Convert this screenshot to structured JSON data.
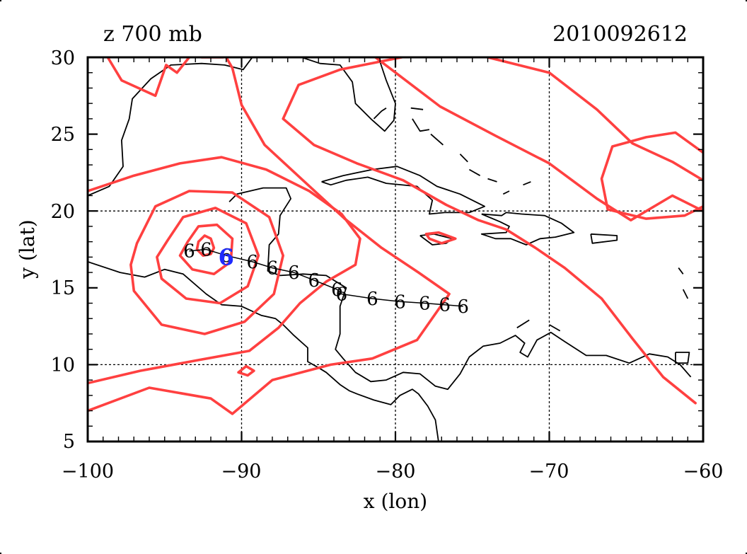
{
  "figure": {
    "title_left": "z 700 mb",
    "title_right": "2010092612",
    "xlabel": "x (lon)",
    "ylabel": "y (lat)",
    "x_ticks": [
      "−100",
      "−90",
      "−80",
      "−70",
      "−60"
    ],
    "y_ticks": [
      "30",
      "25",
      "20",
      "15",
      "10",
      "5"
    ]
  },
  "chart_data": {
    "type": "map",
    "title": "z 700 mb",
    "timestamp": "2010092612",
    "xlabel": "x (lon)",
    "ylabel": "y (lat)",
    "xlim": [
      -100,
      -60
    ],
    "ylim": [
      5,
      30
    ],
    "grid_lon": [
      -90,
      -80,
      -70
    ],
    "grid_lat": [
      10,
      20
    ],
    "colors": {
      "contour": "#ff4040",
      "coast": "#000000",
      "track": "#000000",
      "current_position": "#1f2bff",
      "grid": "#000000"
    },
    "storm_symbol": "6",
    "storm_track": [
      [
        -93.4,
        17.4
      ],
      [
        -92.3,
        17.5
      ],
      [
        -91.0,
        17.1
      ],
      [
        -89.3,
        16.7
      ],
      [
        -88.0,
        16.3
      ],
      [
        -86.6,
        16.0
      ],
      [
        -85.3,
        15.5
      ],
      [
        -83.8,
        14.9
      ],
      [
        -83.5,
        14.6
      ],
      [
        -81.5,
        14.3
      ],
      [
        -79.7,
        14.1
      ],
      [
        -78.1,
        14.0
      ],
      [
        -76.8,
        13.9
      ],
      [
        -75.6,
        13.8
      ]
    ],
    "current_position": [
      -91.0,
      17.0
    ],
    "contours": [
      [
        [
          -92.8,
          18.0
        ],
        [
          -92.4,
          18.4
        ],
        [
          -92.0,
          18.2
        ],
        [
          -91.8,
          17.6
        ],
        [
          -92.0,
          17.2
        ],
        [
          -92.5,
          17.1
        ],
        [
          -92.9,
          17.5
        ],
        [
          -92.8,
          18.0
        ]
      ],
      [
        [
          -93.5,
          18.0
        ],
        [
          -92.8,
          19.0
        ],
        [
          -91.6,
          19.1
        ],
        [
          -90.6,
          18.2
        ],
        [
          -90.7,
          16.7
        ],
        [
          -91.8,
          15.9
        ],
        [
          -93.2,
          16.2
        ],
        [
          -94.0,
          17.1
        ],
        [
          -93.5,
          18.0
        ]
      ],
      [
        [
          -94.8,
          18.1
        ],
        [
          -93.8,
          19.6
        ],
        [
          -91.7,
          20.2
        ],
        [
          -89.7,
          19.2
        ],
        [
          -88.9,
          17.1
        ],
        [
          -89.6,
          15.1
        ],
        [
          -91.4,
          14.0
        ],
        [
          -93.6,
          14.3
        ],
        [
          -95.2,
          15.6
        ],
        [
          -95.5,
          17.0
        ],
        [
          -94.8,
          18.1
        ]
      ],
      [
        [
          -96.8,
          17.9
        ],
        [
          -95.6,
          20.3
        ],
        [
          -93.4,
          21.3
        ],
        [
          -90.6,
          21.2
        ],
        [
          -88.2,
          19.6
        ],
        [
          -87.3,
          17.1
        ],
        [
          -87.9,
          14.6
        ],
        [
          -89.8,
          12.8
        ],
        [
          -92.4,
          12.0
        ],
        [
          -95.2,
          12.6
        ],
        [
          -97.0,
          14.8
        ],
        [
          -97.2,
          16.5
        ],
        [
          -96.8,
          17.9
        ]
      ],
      [
        [
          -100.0,
          21.3
        ],
        [
          -97.0,
          22.3
        ],
        [
          -94.0,
          23.1
        ],
        [
          -91.3,
          23.5
        ],
        [
          -88.4,
          22.7
        ],
        [
          -85.6,
          21.3
        ],
        [
          -83.5,
          19.8
        ],
        [
          -82.3,
          18.2
        ],
        [
          -82.6,
          16.5
        ],
        [
          -84.5,
          15.4
        ],
        [
          -86.2,
          14.0
        ],
        [
          -87.6,
          12.4
        ],
        [
          -89.5,
          10.9
        ],
        [
          -92.8,
          10.3
        ],
        [
          -96.6,
          9.6
        ],
        [
          -100.0,
          8.8
        ]
      ],
      [
        [
          -100.0,
          7.0
        ],
        [
          -96.0,
          8.5
        ],
        [
          -92.0,
          7.8
        ],
        [
          -90.6,
          6.8
        ],
        [
          -88.0,
          9.0
        ],
        [
          -84.2,
          10.0
        ],
        [
          -81.5,
          10.4
        ],
        [
          -78.6,
          11.6
        ],
        [
          -76.5,
          14.6
        ],
        [
          -78.5,
          16.0
        ],
        [
          -80.9,
          17.6
        ],
        [
          -83.3,
          19.5
        ],
        [
          -85.8,
          21.8
        ],
        [
          -88.5,
          24.3
        ],
        [
          -90.0,
          26.9
        ],
        [
          -90.6,
          29.3
        ],
        [
          -91.0,
          30.0
        ]
      ],
      [
        [
          -98.7,
          30.0
        ],
        [
          -97.8,
          28.5
        ],
        [
          -95.6,
          27.5
        ],
        [
          -94.9,
          29.5
        ],
        [
          -94.2,
          29.0
        ],
        [
          -93.4,
          30.0
        ]
      ],
      [
        [
          -92.6,
          30.0
        ],
        [
          -91.2,
          30.0
        ]
      ],
      [
        [
          -79.6,
          30.0
        ],
        [
          -83.6,
          29.2
        ],
        [
          -86.3,
          28.2
        ],
        [
          -87.3,
          26.0
        ],
        [
          -85.3,
          24.3
        ],
        [
          -82.5,
          23.1
        ],
        [
          -79.5,
          22.0
        ],
        [
          -76.7,
          20.4
        ],
        [
          -74.6,
          19.4
        ],
        [
          -72.8,
          18.8
        ],
        [
          -70.9,
          17.6
        ],
        [
          -69.0,
          16.3
        ],
        [
          -66.6,
          14.3
        ],
        [
          -64.6,
          11.7
        ],
        [
          -62.6,
          9.2
        ],
        [
          -60.5,
          7.5
        ]
      ],
      [
        [
          -81.3,
          30.0
        ],
        [
          -77.1,
          26.8
        ],
        [
          -73.5,
          24.9
        ],
        [
          -70.0,
          23.1
        ],
        [
          -66.9,
          20.8
        ],
        [
          -64.7,
          19.4
        ],
        [
          -62.0,
          21.0
        ],
        [
          -60.0,
          20.0
        ]
      ],
      [
        [
          -74.0,
          30.0
        ],
        [
          -70.0,
          29.0
        ],
        [
          -66.9,
          26.6
        ],
        [
          -64.6,
          24.4
        ],
        [
          -62.0,
          23.2
        ],
        [
          -60.0,
          22.0
        ]
      ],
      [
        [
          -60.0,
          23.8
        ],
        [
          -61.8,
          25.1
        ],
        [
          -63.7,
          24.8
        ],
        [
          -65.9,
          24.2
        ],
        [
          -66.6,
          22.1
        ],
        [
          -66.2,
          20.1
        ],
        [
          -63.7,
          19.5
        ],
        [
          -61.2,
          19.7
        ],
        [
          -60.0,
          20.3
        ]
      ],
      [
        [
          -78.0,
          18.5
        ],
        [
          -77.2,
          18.6
        ],
        [
          -76.1,
          18.2
        ],
        [
          -77.0,
          17.9
        ],
        [
          -77.8,
          18.2
        ],
        [
          -78.0,
          18.5
        ]
      ],
      [
        [
          -90.2,
          9.5
        ],
        [
          -89.6,
          9.3
        ],
        [
          -89.2,
          9.6
        ],
        [
          -89.7,
          9.9
        ],
        [
          -90.2,
          9.5
        ]
      ]
    ],
    "coastlines": [
      [
        [
          -100.0,
          21.0
        ],
        [
          -98.6,
          21.6
        ],
        [
          -97.7,
          22.9
        ],
        [
          -97.8,
          24.6
        ],
        [
          -97.3,
          26.0
        ],
        [
          -97.1,
          27.3
        ],
        [
          -95.9,
          28.6
        ],
        [
          -94.6,
          29.5
        ],
        [
          -92.6,
          29.6
        ],
        [
          -91.1,
          29.5
        ],
        [
          -89.9,
          29.2
        ],
        [
          -89.3,
          30.0
        ]
      ],
      [
        [
          -87.6,
          30.0
        ],
        [
          -86.1,
          30.0
        ],
        [
          -84.9,
          29.6
        ],
        [
          -83.6,
          29.5
        ],
        [
          -82.8,
          28.4
        ],
        [
          -82.6,
          27.0
        ],
        [
          -81.6,
          26.0
        ],
        [
          -80.7,
          25.2
        ],
        [
          -80.1,
          25.9
        ],
        [
          -80.0,
          27.0
        ],
        [
          -80.6,
          28.5
        ],
        [
          -81.1,
          30.0
        ]
      ],
      [
        [
          -90.8,
          20.6
        ],
        [
          -90.3,
          21.1
        ],
        [
          -88.6,
          21.5
        ],
        [
          -87.1,
          21.5
        ],
        [
          -86.8,
          20.8
        ],
        [
          -87.5,
          19.7
        ],
        [
          -87.6,
          18.5
        ],
        [
          -88.2,
          17.8
        ],
        [
          -88.3,
          16.1
        ],
        [
          -87.5,
          15.8
        ],
        [
          -86.0,
          15.9
        ],
        [
          -84.5,
          15.8
        ],
        [
          -83.2,
          15.0
        ],
        [
          -83.6,
          13.8
        ],
        [
          -83.6,
          12.0
        ],
        [
          -83.9,
          11.0
        ],
        [
          -83.4,
          10.4
        ],
        [
          -82.6,
          9.5
        ],
        [
          -81.6,
          8.9
        ],
        [
          -80.6,
          9.0
        ],
        [
          -79.5,
          9.5
        ],
        [
          -78.4,
          9.4
        ],
        [
          -77.4,
          8.6
        ],
        [
          -76.6,
          8.4
        ],
        [
          -75.8,
          9.4
        ],
        [
          -75.2,
          10.5
        ],
        [
          -74.3,
          11.2
        ],
        [
          -73.2,
          11.4
        ],
        [
          -72.2,
          11.9
        ],
        [
          -71.6,
          11.4
        ],
        [
          -71.9,
          10.8
        ],
        [
          -71.4,
          10.5
        ],
        [
          -70.8,
          11.6
        ],
        [
          -69.9,
          12.1
        ],
        [
          -69.0,
          11.5
        ],
        [
          -67.6,
          10.6
        ],
        [
          -66.3,
          10.6
        ],
        [
          -64.8,
          10.1
        ],
        [
          -63.5,
          10.7
        ],
        [
          -62.3,
          10.5
        ],
        [
          -61.5,
          10.0
        ],
        [
          -60.8,
          9.2
        ]
      ],
      [
        [
          -100.0,
          16.7
        ],
        [
          -97.9,
          16.0
        ],
        [
          -96.3,
          15.7
        ],
        [
          -95.0,
          16.2
        ],
        [
          -93.8,
          15.9
        ],
        [
          -92.3,
          14.6
        ],
        [
          -91.3,
          13.9
        ],
        [
          -90.0,
          13.8
        ],
        [
          -88.7,
          13.2
        ],
        [
          -87.8,
          13.0
        ],
        [
          -87.3,
          12.6
        ],
        [
          -86.6,
          11.9
        ],
        [
          -85.7,
          11.1
        ],
        [
          -85.7,
          10.2
        ],
        [
          -85.0,
          9.8
        ],
        [
          -84.5,
          9.5
        ],
        [
          -83.6,
          8.7
        ],
        [
          -83.0,
          8.3
        ],
        [
          -82.5,
          8.1
        ],
        [
          -81.4,
          7.7
        ],
        [
          -80.3,
          7.4
        ],
        [
          -79.7,
          8.0
        ],
        [
          -78.9,
          8.4
        ],
        [
          -78.5,
          8.1
        ],
        [
          -77.9,
          7.3
        ],
        [
          -77.4,
          6.4
        ],
        [
          -77.2,
          5.0
        ]
      ],
      [
        [
          -84.8,
          21.9
        ],
        [
          -83.4,
          22.3
        ],
        [
          -81.5,
          22.7
        ],
        [
          -79.9,
          22.9
        ],
        [
          -78.4,
          22.3
        ],
        [
          -77.3,
          21.6
        ],
        [
          -75.8,
          21.1
        ],
        [
          -74.2,
          20.3
        ],
        [
          -75.2,
          19.9
        ],
        [
          -76.8,
          19.9
        ],
        [
          -77.8,
          19.8
        ],
        [
          -77.6,
          20.7
        ],
        [
          -78.6,
          21.6
        ],
        [
          -80.6,
          21.8
        ],
        [
          -81.8,
          22.2
        ],
        [
          -83.2,
          22.0
        ],
        [
          -84.2,
          21.7
        ],
        [
          -84.8,
          21.9
        ]
      ],
      [
        [
          -74.4,
          19.8
        ],
        [
          -73.1,
          19.7
        ],
        [
          -72.8,
          19.9
        ],
        [
          -71.8,
          19.8
        ],
        [
          -70.3,
          19.7
        ],
        [
          -69.2,
          19.2
        ],
        [
          -68.4,
          18.6
        ],
        [
          -69.6,
          18.3
        ],
        [
          -70.6,
          18.2
        ],
        [
          -71.5,
          17.8
        ],
        [
          -72.5,
          18.2
        ],
        [
          -73.5,
          18.2
        ],
        [
          -74.4,
          18.5
        ],
        [
          -72.8,
          18.6
        ],
        [
          -72.6,
          19.0
        ],
        [
          -73.2,
          19.3
        ],
        [
          -74.4,
          19.8
        ]
      ],
      [
        [
          -78.4,
          18.4
        ],
        [
          -77.5,
          18.5
        ],
        [
          -76.3,
          18.2
        ],
        [
          -76.7,
          17.9
        ],
        [
          -77.6,
          17.8
        ],
        [
          -78.4,
          18.4
        ]
      ],
      [
        [
          -67.3,
          18.5
        ],
        [
          -65.6,
          18.4
        ],
        [
          -65.6,
          18.1
        ],
        [
          -67.2,
          17.9
        ],
        [
          -67.3,
          18.5
        ]
      ],
      [
        [
          -61.8,
          10.8
        ],
        [
          -60.9,
          10.8
        ],
        [
          -61.0,
          10.1
        ],
        [
          -61.8,
          10.1
        ],
        [
          -61.8,
          10.8
        ]
      ],
      [
        [
          -81.4,
          26.0
        ],
        [
          -80.9,
          26.5
        ],
        [
          -80.6,
          26.7
        ]
      ],
      [
        [
          -79.0,
          26.7
        ],
        [
          -78.2,
          26.6
        ]
      ],
      [
        [
          -78.9,
          26.0
        ],
        [
          -78.4,
          25.2
        ],
        [
          -77.8,
          25.3
        ]
      ],
      [
        [
          -77.7,
          25.0
        ],
        [
          -76.9,
          24.3
        ]
      ],
      [
        [
          -75.8,
          23.7
        ],
        [
          -75.3,
          23.2
        ]
      ],
      [
        [
          -75.2,
          22.7
        ],
        [
          -74.5,
          22.3
        ]
      ],
      [
        [
          -74.0,
          22.1
        ],
        [
          -73.4,
          21.9
        ]
      ],
      [
        [
          -73.0,
          21.1
        ],
        [
          -72.6,
          21.3
        ]
      ],
      [
        [
          -71.7,
          21.7
        ],
        [
          -71.2,
          21.9
        ]
      ],
      [
        [
          -72.1,
          12.4
        ],
        [
          -71.3,
          12.9
        ]
      ],
      [
        [
          -70.0,
          12.6
        ],
        [
          -69.3,
          12.2
        ]
      ],
      [
        [
          -61.6,
          16.3
        ],
        [
          -61.3,
          15.9
        ]
      ],
      [
        [
          -61.3,
          14.9
        ],
        [
          -61.0,
          14.3
        ]
      ]
    ]
  }
}
